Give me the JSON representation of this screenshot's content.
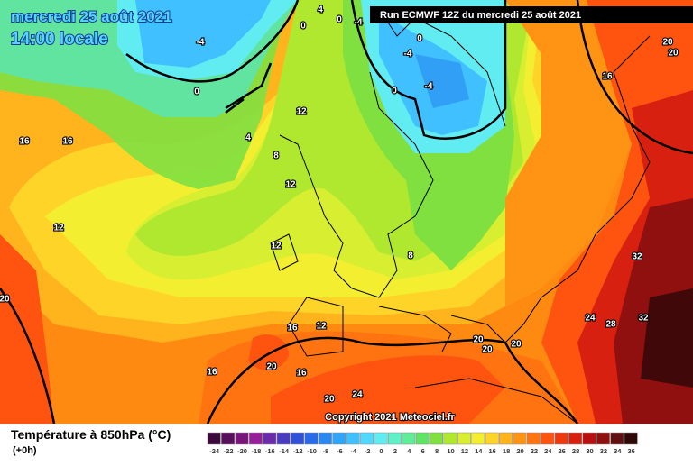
{
  "header": {
    "date": "mercredi 25 août 2021",
    "time": "14:00 locale",
    "run": "Run ECMWF 12Z du mercredi 25 août 2021"
  },
  "copyright": "Copyright 2021 Meteociel.fr",
  "legend": {
    "title": "Température à 850hPa (°C)",
    "subtitle": "(+0h)",
    "ticks": [
      -24,
      -22,
      -20,
      -18,
      -16,
      -14,
      -12,
      -10,
      -8,
      -6,
      -4,
      -2,
      0,
      2,
      4,
      6,
      8,
      10,
      12,
      14,
      16,
      18,
      20,
      22,
      24,
      26,
      28,
      30,
      32,
      34,
      36
    ],
    "colors": [
      "#3a0a3a",
      "#58105a",
      "#78167a",
      "#96209a",
      "#6a2ca8",
      "#4a3cc0",
      "#3050d8",
      "#2a6ae8",
      "#2a88f0",
      "#30a4f8",
      "#40c0ff",
      "#50d8ff",
      "#60ecf0",
      "#60f0c8",
      "#60ec98",
      "#60e468",
      "#80e040",
      "#b0e830",
      "#d8ee30",
      "#f4ee30",
      "#ffd428",
      "#ffb41e",
      "#ff9414",
      "#ff7410",
      "#ff5410",
      "#f03810",
      "#d82010",
      "#b81010",
      "#901010",
      "#601010",
      "#300808"
    ]
  },
  "contour_labels": [
    4,
    0,
    0,
    -4,
    -4,
    0,
    0,
    -4,
    0,
    -4,
    4,
    12,
    8,
    12,
    12,
    8,
    16,
    16,
    12,
    20,
    16,
    20,
    20,
    32,
    32,
    24,
    28,
    16,
    12,
    20,
    20,
    20,
    20,
    16,
    16,
    20,
    24
  ]
}
